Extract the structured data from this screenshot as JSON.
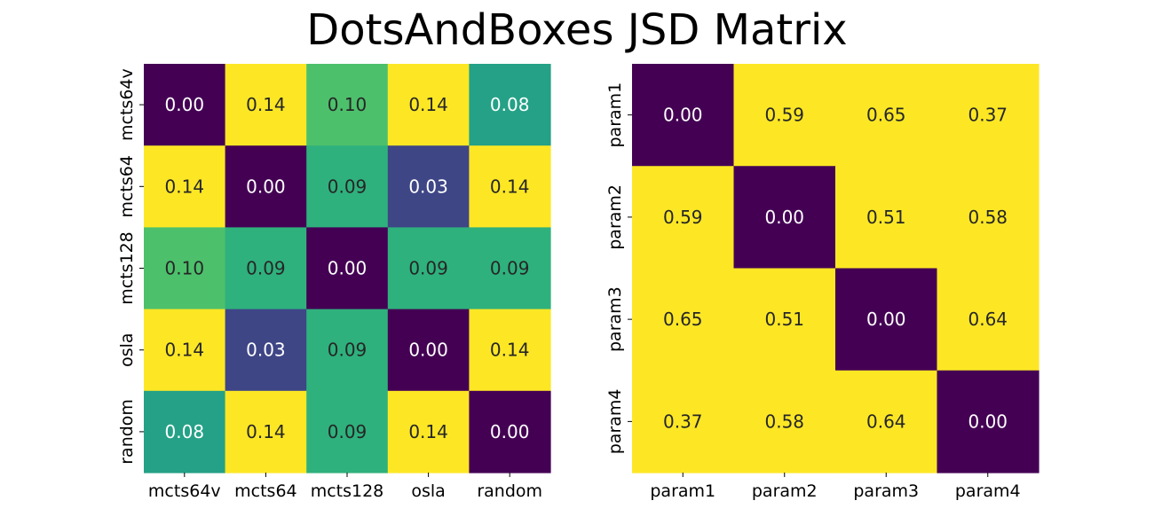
{
  "title": "DotsAndBoxes JSD Matrix",
  "chart_data": [
    {
      "type": "heatmap",
      "colormap": "viridis",
      "vmin": 0.0,
      "vmax": 0.14,
      "x_labels": [
        "mcts64v",
        "mcts64",
        "mcts128",
        "osla",
        "random"
      ],
      "y_labels": [
        "mcts64v",
        "mcts64",
        "mcts128",
        "osla",
        "random"
      ],
      "values": [
        [
          0.0,
          0.14,
          0.1,
          0.14,
          0.08
        ],
        [
          0.14,
          0.0,
          0.09,
          0.03,
          0.14
        ],
        [
          0.1,
          0.09,
          0.0,
          0.09,
          0.09
        ],
        [
          0.14,
          0.03,
          0.09,
          0.0,
          0.14
        ],
        [
          0.08,
          0.14,
          0.09,
          0.14,
          0.0
        ]
      ],
      "cell_labels": [
        [
          "0.00",
          "0.14",
          "0.10",
          "0.14",
          "0.08"
        ],
        [
          "0.14",
          "0.00",
          "0.09",
          "0.03",
          "0.14"
        ],
        [
          "0.10",
          "0.09",
          "0.00",
          "0.09",
          "0.09"
        ],
        [
          "0.14",
          "0.03",
          "0.09",
          "0.00",
          "0.14"
        ],
        [
          "0.08",
          "0.14",
          "0.09",
          "0.14",
          "0.00"
        ]
      ]
    },
    {
      "type": "heatmap",
      "colormap": "viridis",
      "vmin": 0.0,
      "vmax": 0.37,
      "x_labels": [
        "param1",
        "param2",
        "param3",
        "param4"
      ],
      "y_labels": [
        "param1",
        "param2",
        "param3",
        "param4"
      ],
      "values": [
        [
          0.0,
          0.59,
          0.65,
          0.37
        ],
        [
          0.59,
          0.0,
          0.51,
          0.58
        ],
        [
          0.65,
          0.51,
          0.0,
          0.64
        ],
        [
          0.37,
          0.58,
          0.64,
          0.0
        ]
      ],
      "cell_labels": [
        [
          "0.00",
          "0.59",
          "0.65",
          "0.37"
        ],
        [
          "0.59",
          "0.00",
          "0.51",
          "0.58"
        ],
        [
          "0.65",
          "0.51",
          "0.00",
          "0.64"
        ],
        [
          "0.37",
          "0.58",
          "0.64",
          "0.00"
        ]
      ]
    }
  ]
}
